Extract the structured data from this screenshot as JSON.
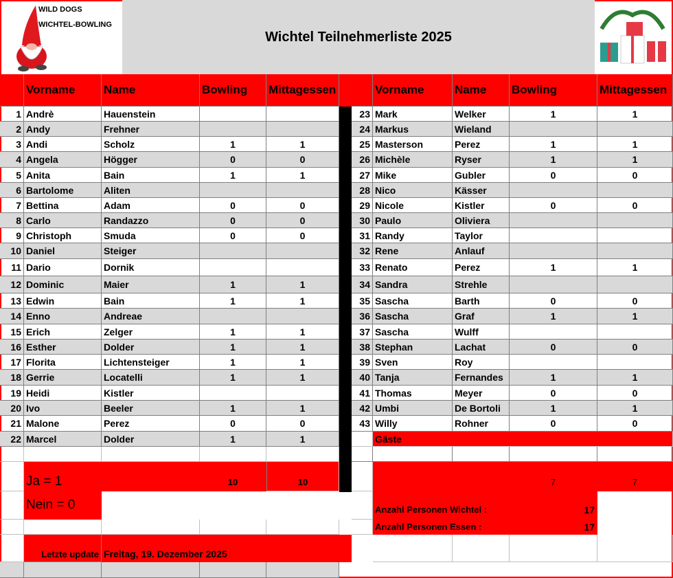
{
  "title": "Wichtel Teilnehmerliste 2025",
  "logo": {
    "line1": "WILD DOGS",
    "line2": "WICHTEL-BOWLING"
  },
  "headers": [
    "",
    "Vorname",
    "Name",
    "Bowling",
    "Mittagessen"
  ],
  "left_rows": [
    [
      "1",
      "Andrè",
      "Hauenstein",
      "",
      ""
    ],
    [
      "2",
      "Andy",
      "Frehner",
      "",
      ""
    ],
    [
      "3",
      "Andi",
      "Scholz",
      "1",
      "1"
    ],
    [
      "4",
      "Angela",
      "Högger",
      "0",
      "0"
    ],
    [
      "5",
      "Anita",
      "Bain",
      "1",
      "1"
    ],
    [
      "6",
      "Bartolome",
      "Aliten",
      "",
      ""
    ],
    [
      "7",
      "Bettina",
      "Adam",
      "0",
      "0"
    ],
    [
      "8",
      "Carlo",
      "Randazzo",
      "0",
      "0"
    ],
    [
      "9",
      "Christoph",
      "Smuda",
      "0",
      "0"
    ],
    [
      "10",
      "Daniel",
      "Steiger",
      "",
      ""
    ],
    [
      "11",
      "Dario",
      "Dornik",
      "",
      ""
    ],
    [
      "12",
      "Dominic",
      "Maier",
      "1",
      "1"
    ],
    [
      "13",
      "Edwin",
      "Bain",
      "1",
      "1"
    ],
    [
      "14",
      "Enno",
      "Andreae",
      "",
      ""
    ],
    [
      "15",
      "Erich",
      "Zelger",
      "1",
      "1"
    ],
    [
      "16",
      "Esther",
      "Dolder",
      "1",
      "1"
    ],
    [
      "17",
      "Florita",
      "Lichtensteiger",
      "1",
      "1"
    ],
    [
      "18",
      "Gerrie",
      "Locatelli",
      "1",
      "1"
    ],
    [
      "19",
      "Heidi",
      "Kistler",
      "",
      ""
    ],
    [
      "20",
      "Ivo",
      "Beeler",
      "1",
      "1"
    ],
    [
      "21",
      "Malone",
      "Perez",
      "0",
      "0"
    ],
    [
      "22",
      "Marcel",
      "Dolder",
      "1",
      "1"
    ]
  ],
  "right_rows": [
    [
      "23",
      "Mark",
      "Welker",
      "1",
      "1"
    ],
    [
      "24",
      "Markus",
      "Wieland",
      "",
      ""
    ],
    [
      "25",
      "Masterson",
      "Perez",
      "1",
      "1"
    ],
    [
      "26",
      "Michèle",
      "Ryser",
      "1",
      "1"
    ],
    [
      "27",
      "Mike",
      "Gubler",
      "0",
      "0"
    ],
    [
      "28",
      "Nico",
      "Kässer",
      "",
      ""
    ],
    [
      "29",
      "Nicole",
      "Kistler",
      "0",
      "0"
    ],
    [
      "30",
      "Paulo",
      "Oliviera",
      "",
      ""
    ],
    [
      "31",
      "Randy",
      "Taylor",
      "",
      ""
    ],
    [
      "32",
      "Rene",
      "Anlauf",
      "",
      ""
    ],
    [
      "33",
      "Renato",
      "Perez",
      "1",
      "1"
    ],
    [
      "34",
      "Sandra",
      "Strehle",
      "",
      ""
    ],
    [
      "35",
      "Sascha",
      "Barth",
      "0",
      "0"
    ],
    [
      "36",
      "Sascha",
      "Graf",
      "1",
      "1"
    ],
    [
      "37",
      "Sascha",
      "Wulff",
      "",
      ""
    ],
    [
      "38",
      "Stephan",
      "Lachat",
      "0",
      "0"
    ],
    [
      "39",
      "Sven",
      "Roy",
      "",
      ""
    ],
    [
      "40",
      "Tanja",
      "Fernandes",
      "1",
      "1"
    ],
    [
      "41",
      "Thomas",
      "Meyer",
      "0",
      "0"
    ],
    [
      "42",
      "Umbi",
      "De Bortoli",
      "1",
      "1"
    ],
    [
      "43",
      "Willy",
      "Rohner",
      "0",
      "0"
    ]
  ],
  "guests_label": "Gäste",
  "summary": {
    "ja_label": "Ja = 1",
    "nein_label": "Nein = 0",
    "left_bowling_total": "10",
    "left_meal_total": "10",
    "right_bowling_total": "7",
    "right_meal_total": "7",
    "persons_wichtel_label": "Anzahl Personen Wichtel :",
    "persons_wichtel": "17",
    "persons_essen_label": "Anzahl Personen Essen :",
    "persons_essen": "17",
    "update_label": "Letzte update",
    "update_value": "Freitag, 19. Dezember 2025"
  },
  "colors": {
    "accent": "#ff0000",
    "stripe": "#d9d9d9",
    "divider": "#000000"
  }
}
